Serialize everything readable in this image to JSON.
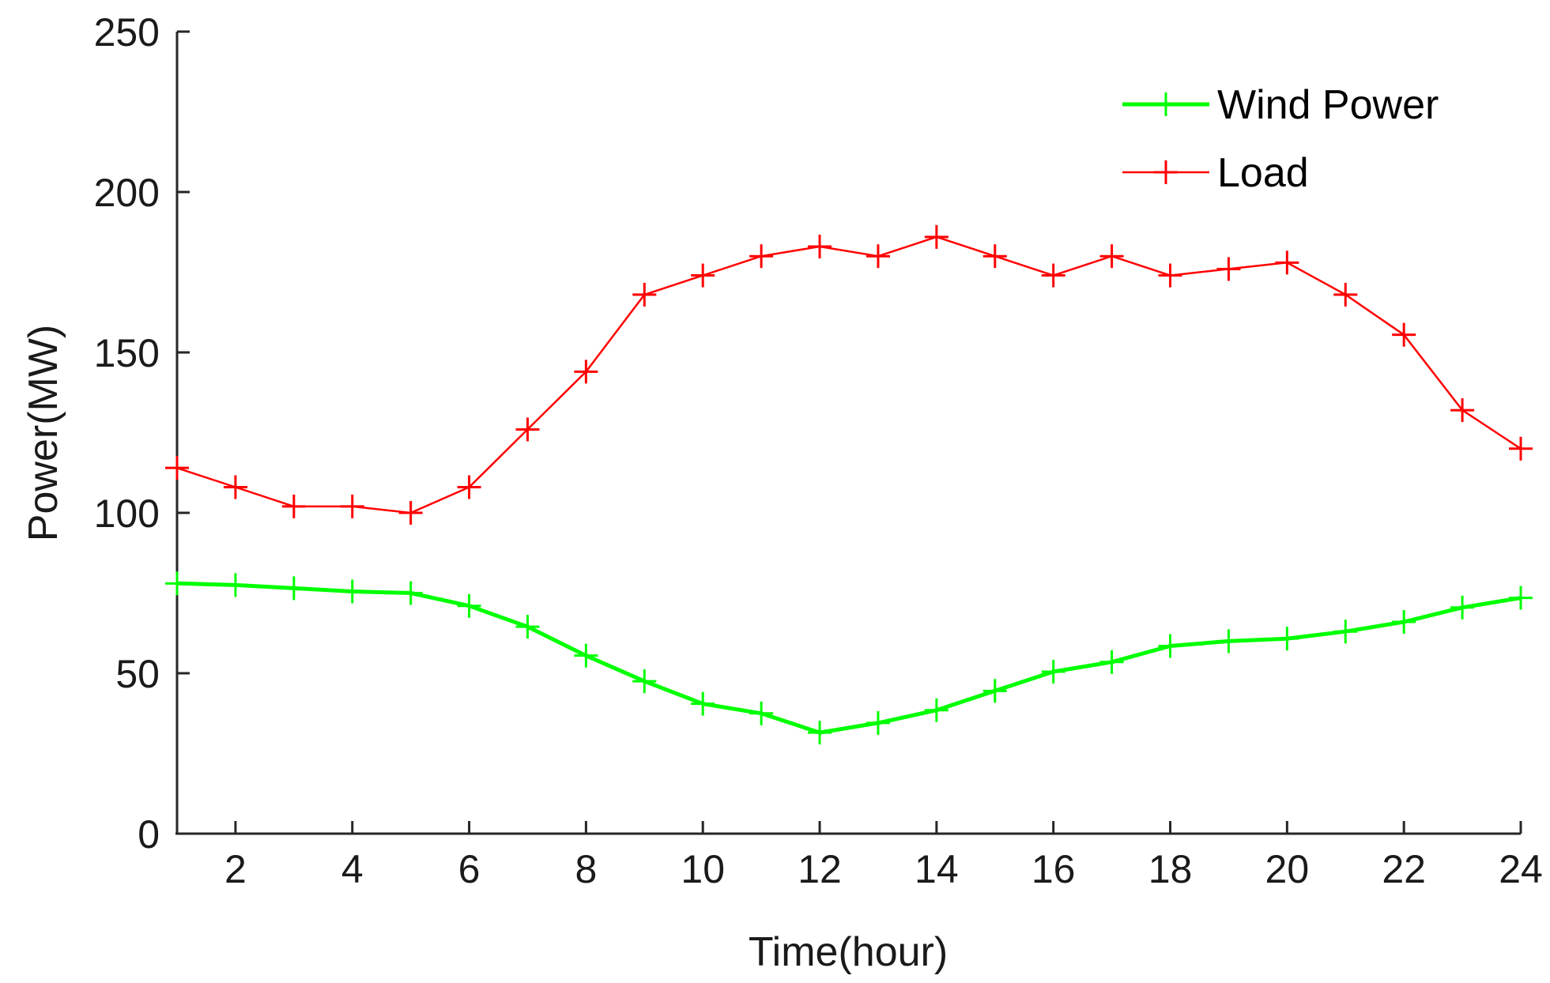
{
  "chart_data": {
    "type": "line",
    "title": "",
    "xlabel": "Time(hour)",
    "ylabel": "Power(MW)",
    "xlim": [
      1,
      24
    ],
    "ylim": [
      0,
      250
    ],
    "x": [
      1,
      2,
      3,
      4,
      5,
      6,
      7,
      8,
      9,
      10,
      11,
      12,
      13,
      14,
      15,
      16,
      17,
      18,
      19,
      20,
      21,
      22,
      23,
      24
    ],
    "xticks": [
      "2",
      "4",
      "6",
      "8",
      "10",
      "12",
      "14",
      "16",
      "18",
      "20",
      "22",
      "24"
    ],
    "yticks": [
      "0",
      "50",
      "100",
      "150",
      "200",
      "250"
    ],
    "grid": false,
    "legend_position": "top-right",
    "series": [
      {
        "name": "Wind Power",
        "color": "#00ff00",
        "marker": "plus",
        "values": [
          78,
          77.5,
          76.5,
          75.5,
          75,
          71,
          64.5,
          55.5,
          47.5,
          40.5,
          37.5,
          31.5,
          34.5,
          38.5,
          44.5,
          50.5,
          53.5,
          58.5,
          60,
          60.8,
          63,
          66,
          70.5,
          73.5
        ]
      },
      {
        "name": "Load",
        "color": "#ff0000",
        "marker": "plus",
        "values": [
          114,
          108,
          102,
          102,
          100,
          108,
          126,
          144,
          168,
          174,
          180,
          183,
          180,
          186,
          180,
          174,
          180,
          174,
          176,
          178,
          168,
          155.5,
          132,
          120
        ]
      }
    ]
  }
}
